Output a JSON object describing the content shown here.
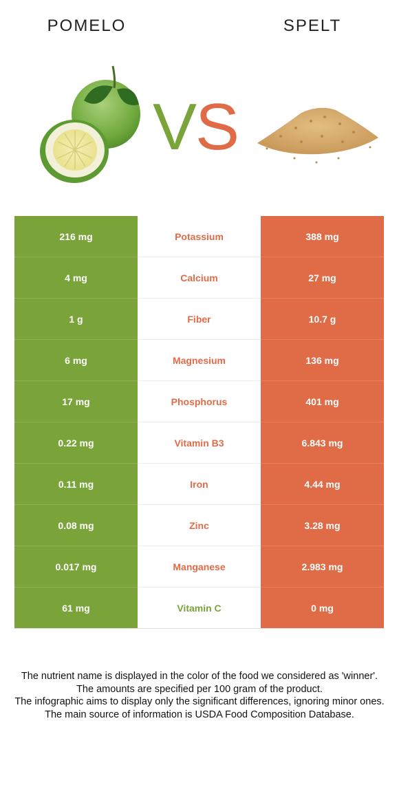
{
  "header": {
    "left_food": "POMELO",
    "right_food": "SPELT",
    "vs_v": "V",
    "vs_s": "S"
  },
  "colors": {
    "left": "#7aa43a",
    "right": "#e06b47"
  },
  "rows": [
    {
      "nutrient": "Potassium",
      "left": "216 mg",
      "right": "388 mg",
      "winner": "right"
    },
    {
      "nutrient": "Calcium",
      "left": "4 mg",
      "right": "27 mg",
      "winner": "right"
    },
    {
      "nutrient": "Fiber",
      "left": "1 g",
      "right": "10.7 g",
      "winner": "right"
    },
    {
      "nutrient": "Magnesium",
      "left": "6 mg",
      "right": "136 mg",
      "winner": "right"
    },
    {
      "nutrient": "Phosphorus",
      "left": "17 mg",
      "right": "401 mg",
      "winner": "right"
    },
    {
      "nutrient": "Vitamin B3",
      "left": "0.22 mg",
      "right": "6.843 mg",
      "winner": "right"
    },
    {
      "nutrient": "Iron",
      "left": "0.11 mg",
      "right": "4.44 mg",
      "winner": "right"
    },
    {
      "nutrient": "Zinc",
      "left": "0.08 mg",
      "right": "3.28 mg",
      "winner": "right"
    },
    {
      "nutrient": "Manganese",
      "left": "0.017 mg",
      "right": "2.983 mg",
      "winner": "right"
    },
    {
      "nutrient": "Vitamin C",
      "left": "61 mg",
      "right": "0 mg",
      "winner": "left"
    }
  ],
  "footnote": {
    "line1": "The nutrient name is displayed in the color of the food we considered as 'winner'.",
    "line2": "The amounts are specified per 100 gram of the product.",
    "line3": "The infographic aims to display only the significant differences, ignoring minor ones.",
    "line4": "The main source of information is USDA Food Composition Database."
  }
}
